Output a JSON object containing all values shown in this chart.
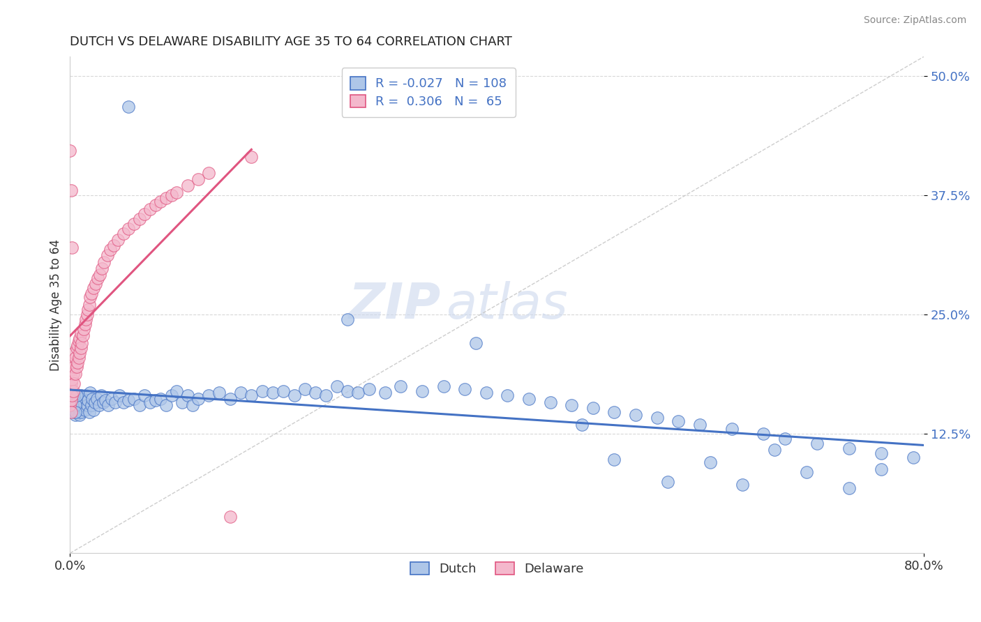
{
  "title": "DUTCH VS DELAWARE DISABILITY AGE 35 TO 64 CORRELATION CHART",
  "source": "Source: ZipAtlas.com",
  "ylabel": "Disability Age 35 to 64",
  "xlim": [
    0.0,
    0.8
  ],
  "ylim": [
    0.0,
    0.52
  ],
  "xticks": [
    0.0,
    0.8
  ],
  "xticklabels": [
    "0.0%",
    "80.0%"
  ],
  "yticks": [
    0.125,
    0.25,
    0.375,
    0.5
  ],
  "yticklabels": [
    "12.5%",
    "25.0%",
    "37.5%",
    "50.0%"
  ],
  "watermark_zip": "ZIP",
  "watermark_atlas": "atlas",
  "legend_R_dutch": "-0.027",
  "legend_N_dutch": "108",
  "legend_R_delaware": "0.306",
  "legend_N_delaware": "65",
  "dutch_fill": "#aec6e8",
  "dutch_edge": "#4472c4",
  "delaware_fill": "#f4b8cc",
  "delaware_edge": "#e05580",
  "dutch_line_color": "#4472c4",
  "delaware_line_color": "#e05580",
  "diag_color": "#c8c8c8",
  "grid_color": "#d8d8d8",
  "title_color": "#222222",
  "source_color": "#888888",
  "tick_color": "#4472c4",
  "background_color": "#ffffff",
  "dutch_x": [
    0.002,
    0.003,
    0.003,
    0.004,
    0.004,
    0.005,
    0.005,
    0.006,
    0.006,
    0.007,
    0.007,
    0.008,
    0.008,
    0.009,
    0.009,
    0.01,
    0.01,
    0.011,
    0.012,
    0.013,
    0.014,
    0.015,
    0.016,
    0.017,
    0.018,
    0.019,
    0.02,
    0.021,
    0.022,
    0.023,
    0.025,
    0.027,
    0.029,
    0.031,
    0.033,
    0.036,
    0.039,
    0.042,
    0.046,
    0.05,
    0.055,
    0.06,
    0.065,
    0.07,
    0.075,
    0.08,
    0.085,
    0.09,
    0.095,
    0.1,
    0.105,
    0.11,
    0.115,
    0.12,
    0.13,
    0.14,
    0.15,
    0.16,
    0.17,
    0.18,
    0.19,
    0.2,
    0.21,
    0.22,
    0.23,
    0.24,
    0.25,
    0.26,
    0.27,
    0.28,
    0.295,
    0.31,
    0.33,
    0.35,
    0.37,
    0.39,
    0.41,
    0.43,
    0.45,
    0.47,
    0.49,
    0.51,
    0.53,
    0.55,
    0.57,
    0.59,
    0.62,
    0.65,
    0.67,
    0.7,
    0.73,
    0.76,
    0.79,
    0.055,
    0.26,
    0.38,
    0.48,
    0.51,
    0.56,
    0.6,
    0.63,
    0.66,
    0.69,
    0.73,
    0.76,
    0.005,
    0.005,
    0.006
  ],
  "dutch_y": [
    0.155,
    0.16,
    0.148,
    0.158,
    0.152,
    0.162,
    0.145,
    0.165,
    0.155,
    0.16,
    0.148,
    0.162,
    0.15,
    0.158,
    0.145,
    0.165,
    0.148,
    0.155,
    0.162,
    0.158,
    0.15,
    0.165,
    0.155,
    0.16,
    0.148,
    0.168,
    0.155,
    0.162,
    0.15,
    0.158,
    0.162,
    0.155,
    0.165,
    0.158,
    0.16,
    0.155,
    0.162,
    0.158,
    0.165,
    0.158,
    0.16,
    0.162,
    0.155,
    0.165,
    0.158,
    0.16,
    0.162,
    0.155,
    0.165,
    0.17,
    0.158,
    0.165,
    0.155,
    0.162,
    0.165,
    0.168,
    0.162,
    0.168,
    0.165,
    0.17,
    0.168,
    0.17,
    0.165,
    0.172,
    0.168,
    0.165,
    0.175,
    0.17,
    0.168,
    0.172,
    0.168,
    0.175,
    0.17,
    0.175,
    0.172,
    0.168,
    0.165,
    0.162,
    0.158,
    0.155,
    0.152,
    0.148,
    0.145,
    0.142,
    0.138,
    0.135,
    0.13,
    0.125,
    0.12,
    0.115,
    0.11,
    0.105,
    0.1,
    0.468,
    0.245,
    0.22,
    0.135,
    0.098,
    0.075,
    0.095,
    0.072,
    0.108,
    0.085,
    0.068,
    0.088,
    0.155,
    0.148,
    0.165
  ],
  "delaware_x": [
    0.0,
    0.0,
    0.001,
    0.001,
    0.001,
    0.002,
    0.002,
    0.002,
    0.003,
    0.003,
    0.003,
    0.004,
    0.004,
    0.004,
    0.005,
    0.005,
    0.006,
    0.006,
    0.007,
    0.007,
    0.008,
    0.008,
    0.009,
    0.009,
    0.01,
    0.01,
    0.011,
    0.012,
    0.013,
    0.014,
    0.015,
    0.016,
    0.017,
    0.018,
    0.019,
    0.02,
    0.022,
    0.024,
    0.026,
    0.028,
    0.03,
    0.032,
    0.035,
    0.038,
    0.041,
    0.045,
    0.05,
    0.055,
    0.06,
    0.065,
    0.07,
    0.075,
    0.08,
    0.085,
    0.09,
    0.095,
    0.1,
    0.11,
    0.12,
    0.13,
    0.15,
    0.17,
    0.0,
    0.001,
    0.002
  ],
  "delaware_y": [
    0.155,
    0.175,
    0.16,
    0.178,
    0.148,
    0.165,
    0.182,
    0.192,
    0.17,
    0.188,
    0.2,
    0.178,
    0.195,
    0.21,
    0.188,
    0.205,
    0.195,
    0.215,
    0.2,
    0.218,
    0.205,
    0.222,
    0.21,
    0.225,
    0.215,
    0.23,
    0.22,
    0.228,
    0.235,
    0.24,
    0.245,
    0.25,
    0.255,
    0.26,
    0.268,
    0.272,
    0.278,
    0.282,
    0.288,
    0.292,
    0.298,
    0.305,
    0.312,
    0.318,
    0.322,
    0.328,
    0.335,
    0.34,
    0.345,
    0.35,
    0.355,
    0.36,
    0.365,
    0.368,
    0.372,
    0.375,
    0.378,
    0.385,
    0.392,
    0.398,
    0.038,
    0.415,
    0.422,
    0.38,
    0.32
  ]
}
